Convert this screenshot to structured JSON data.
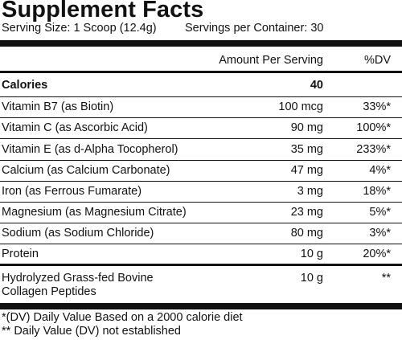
{
  "panel": {
    "title": "Supplement Facts",
    "serving_size": "Serving Size: 1 Scoop (12.4g)",
    "servings_per_container": "Servings per Container: 30"
  },
  "table": {
    "header": {
      "amount": "Amount Per Serving",
      "dv": "%DV"
    },
    "calories": {
      "name": "Calories",
      "amount": "40",
      "dv": ""
    },
    "rows": [
      {
        "name": "Vitamin B7 (as Biotin)",
        "amount": "100 mcg",
        "dv": "33%*"
      },
      {
        "name": "Vitamin C (as Ascorbic Acid)",
        "amount": "90 mg",
        "dv": "100%*"
      },
      {
        "name": "Vitamin E (as d-Alpha Tocopherol)",
        "amount": "35 mg",
        "dv": "233%*"
      },
      {
        "name": "Calcium (as Calcium Carbonate)",
        "amount": "47 mg",
        "dv": "4%*"
      },
      {
        "name": "Iron (as Ferrous Fumarate)",
        "amount": "3 mg",
        "dv": "18%*"
      },
      {
        "name": "Magnesium (as Magnesium Citrate)",
        "amount": "23 mg",
        "dv": "5%*"
      },
      {
        "name": "Sodium (as Sodium Chloride)",
        "amount": "80 mg",
        "dv": "3%*"
      },
      {
        "name": "Protein",
        "amount": "10 g",
        "dv": "20%*"
      }
    ],
    "collagen": {
      "name_line1": "Hydrolyzed Grass-fed Bovine",
      "name_line2": "Collagen Peptides",
      "amount": "10 g",
      "dv": "**"
    }
  },
  "footnotes": {
    "note1": "*(DV) Daily Value Based on a 2000 calorie diet",
    "note2": "** Daily Value (DV) not established"
  }
}
